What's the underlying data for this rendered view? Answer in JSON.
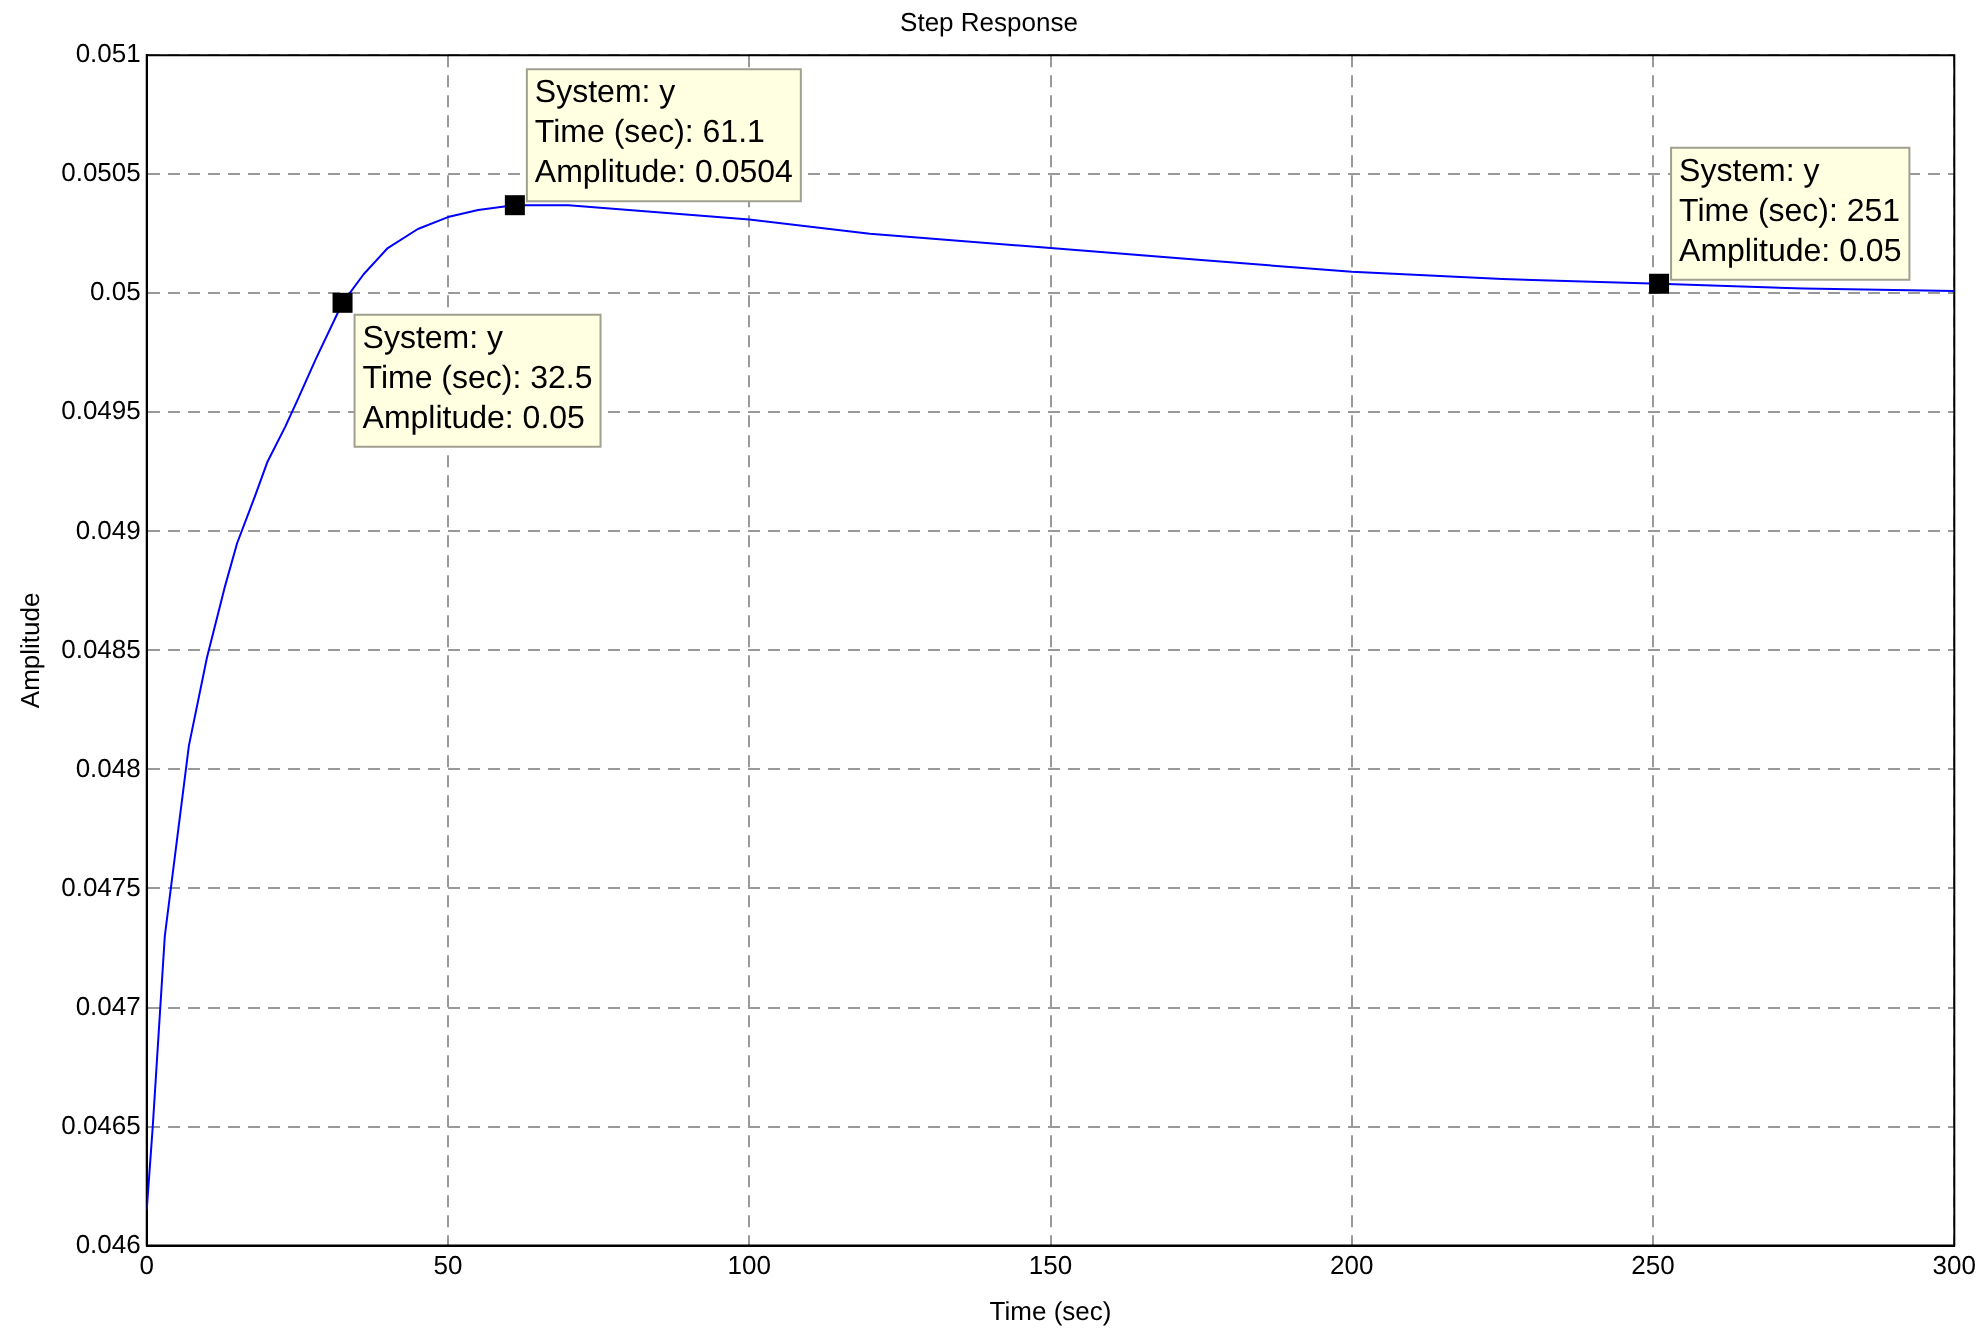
{
  "chart_data": {
    "type": "line",
    "title": "Step Response",
    "xlabel": "Time (sec)",
    "ylabel": "Amplitude",
    "series": [
      {
        "color": "#0000ff",
        "x": [
          0,
          1,
          2,
          3,
          5,
          7,
          10,
          13,
          15,
          18,
          20,
          23,
          25,
          28,
          32.5,
          36,
          40,
          45,
          50,
          55,
          61.1,
          70,
          80,
          90,
          100,
          120,
          150,
          175,
          200,
          225,
          251,
          275,
          300
        ],
        "values": [
          0.04615,
          0.0465,
          0.0469,
          0.0473,
          0.0477,
          0.0481,
          0.04847,
          0.04877,
          0.04895,
          0.04915,
          0.04929,
          0.04944,
          0.04955,
          0.04972,
          0.04996,
          0.05008,
          0.05019,
          0.05027,
          0.05032,
          0.05035,
          0.05037,
          0.05037,
          0.05035,
          0.05033,
          0.05031,
          0.05025,
          0.05019,
          0.05014,
          0.05009,
          0.05006,
          0.05004,
          0.05002,
          0.05001
        ]
      }
    ],
    "annotations": [
      {
        "text": "System: y\nTime (sec): 32.5\nAmplitude: 0.05",
        "x": 32.5,
        "y": 0.04996
      },
      {
        "text": "System: y\nTime (sec): 61.1\nAmplitude: 0.0504",
        "x": 61.1,
        "y": 0.05037
      },
      {
        "text": "System: y\nTime (sec): 251\nAmplitude: 0.05",
        "x": 251,
        "y": 0.05004
      }
    ],
    "xlim": [
      0,
      300
    ],
    "xticks": [
      0,
      50,
      100,
      150,
      200,
      250,
      300
    ],
    "ylim": [
      0.046,
      0.051
    ],
    "yticks": [
      0.046,
      0.0465,
      0.047,
      0.0475,
      0.048,
      0.0485,
      0.049,
      0.0495,
      0.05,
      0.0505,
      0.051
    ],
    "grid": true,
    "line_style": "solid"
  }
}
